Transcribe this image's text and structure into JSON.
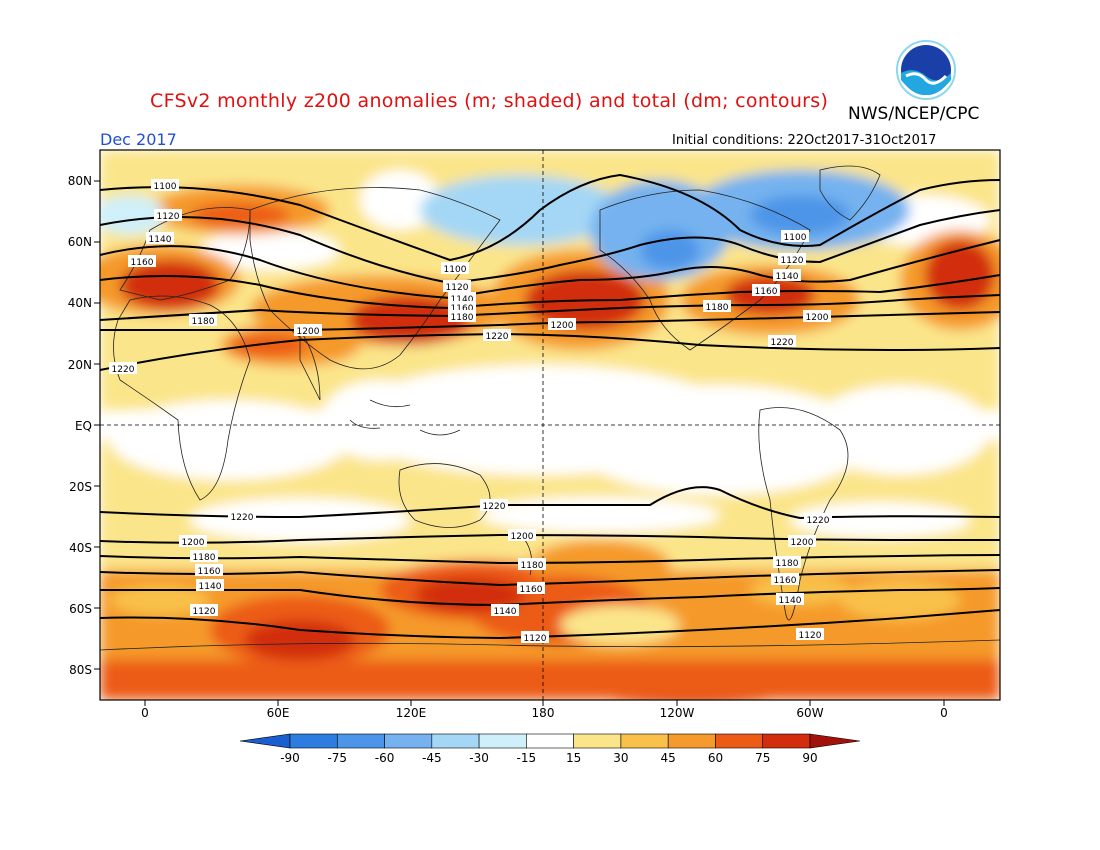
{
  "header": {
    "title": "CFSv2 monthly z200 anomalies (m; shaded) and total (dm; contours)",
    "agency": "NWS/NCEP/CPC",
    "month": "Dec 2017",
    "initial_conditions": "Initial conditions: 22Oct2017-31Oct2017",
    "logo_text": "NOAA"
  },
  "map": {
    "lat_labels": [
      "80N",
      "60N",
      "40N",
      "20N",
      "EQ",
      "20S",
      "40S",
      "60S",
      "80S"
    ],
    "lon_labels": [
      "0",
      "60E",
      "120E",
      "180",
      "120W",
      "60W",
      "0"
    ],
    "contours_nh": [
      {
        "label": "1100",
        "color": "#000"
      },
      {
        "label": "1120",
        "color": "#000"
      },
      {
        "label": "1140",
        "color": "#000"
      },
      {
        "label": "1160",
        "color": "#000"
      },
      {
        "label": "1180",
        "color": "#000"
      },
      {
        "label": "1200",
        "color": "#000"
      },
      {
        "label": "1220",
        "color": "#000"
      }
    ],
    "contours_sh": [
      "1220",
      "1200",
      "1180",
      "1160",
      "1140",
      "1120"
    ]
  },
  "colorbar": {
    "labels": [
      "-90",
      "-75",
      "-60",
      "-45",
      "-30",
      "-15",
      "15",
      "30",
      "45",
      "60",
      "75",
      "90"
    ],
    "colors": [
      "#1a5fd0",
      "#2d7de0",
      "#4d95e8",
      "#75b2ef",
      "#a4d7f5",
      "#cff0fa",
      "#ffffff",
      "#fbe58a",
      "#f9c14a",
      "#f59a2c",
      "#ec5c17",
      "#d22d0d",
      "#a3120a"
    ]
  }
}
